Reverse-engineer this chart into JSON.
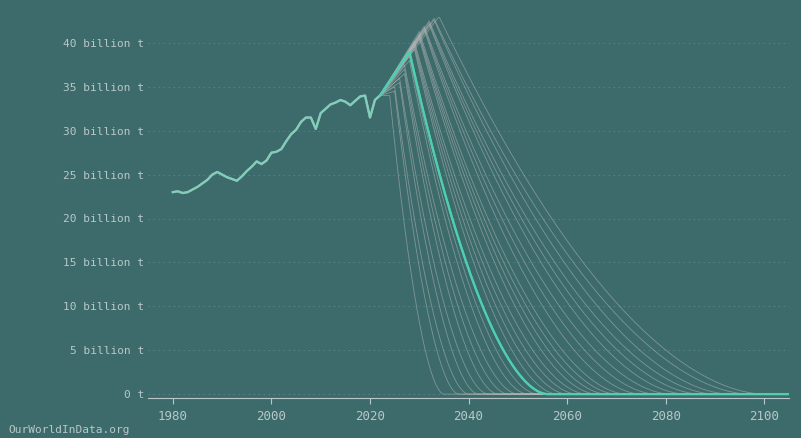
{
  "background_color": "#3d6b6b",
  "line_color_historical": "#cccccc",
  "line_color_teal": "#50d0b0",
  "line_color_gray": "#b8b8b8",
  "grid_color": "#5a8a8a",
  "text_color": "#b8c8c8",
  "ylabel_ticks": [
    "0 t",
    "5 billion t",
    "10 billion t",
    "15 billion t",
    "20 billion t",
    "25 billion t",
    "30 billion t",
    "35 billion t",
    "40 billion t"
  ],
  "ytick_values": [
    0,
    5,
    10,
    15,
    20,
    25,
    30,
    35,
    40
  ],
  "xtick_values": [
    1980,
    2000,
    2020,
    2040,
    2060,
    2080,
    2100
  ],
  "xlim": [
    1975,
    2105
  ],
  "ylim": [
    -0.5,
    43
  ],
  "watermark": "OurWorldInData.org",
  "num_scenario_lines": 28,
  "hist_years": [
    1980,
    1981,
    1982,
    1983,
    1984,
    1985,
    1986,
    1987,
    1988,
    1989,
    1990,
    1991,
    1992,
    1993,
    1994,
    1995,
    1996,
    1997,
    1998,
    1999,
    2000,
    2001,
    2002,
    2003,
    2004,
    2005,
    2006,
    2007,
    2008,
    2009,
    2010,
    2011,
    2012,
    2013,
    2014,
    2015,
    2016,
    2017,
    2018,
    2019,
    2020,
    2021,
    2022
  ],
  "hist_values": [
    23.0,
    23.1,
    22.9,
    23.0,
    23.3,
    23.6,
    24.0,
    24.4,
    25.0,
    25.3,
    25.0,
    24.7,
    24.5,
    24.3,
    24.8,
    25.4,
    25.9,
    26.5,
    26.2,
    26.6,
    27.5,
    27.6,
    27.9,
    28.8,
    29.6,
    30.1,
    31.0,
    31.5,
    31.5,
    30.2,
    32.0,
    32.5,
    33.0,
    33.2,
    33.5,
    33.3,
    32.9,
    33.4,
    33.9,
    34.0,
    31.5,
    33.5,
    34.0
  ],
  "join_year": 2022,
  "join_value": 34.0,
  "scenario_peak_years": [
    2024,
    2025,
    2025,
    2026,
    2026,
    2027,
    2027,
    2027,
    2028,
    2028,
    2028,
    2029,
    2029,
    2029,
    2029,
    2030,
    2030,
    2030,
    2030,
    2031,
    2031,
    2031,
    2032,
    2032,
    2032,
    2033,
    2033,
    2034
  ],
  "scenario_peak_values": [
    34.0,
    34.5,
    35.0,
    35.5,
    36.0,
    36.5,
    37.0,
    37.5,
    38.0,
    38.5,
    39.0,
    39.3,
    39.6,
    39.9,
    40.2,
    40.5,
    40.8,
    41.0,
    41.3,
    41.5,
    41.7,
    41.9,
    42.1,
    42.3,
    42.5,
    42.6,
    42.8,
    43.0
  ],
  "scenario_zero_years": [
    2035,
    2038,
    2040,
    2042,
    2044,
    2046,
    2048,
    2050,
    2052,
    2054,
    2056,
    2058,
    2060,
    2062,
    2064,
    2066,
    2068,
    2070,
    2072,
    2075,
    2078,
    2081,
    2084,
    2087,
    2090,
    2093,
    2097,
    2100
  ],
  "teal_scenario_idx": 10
}
